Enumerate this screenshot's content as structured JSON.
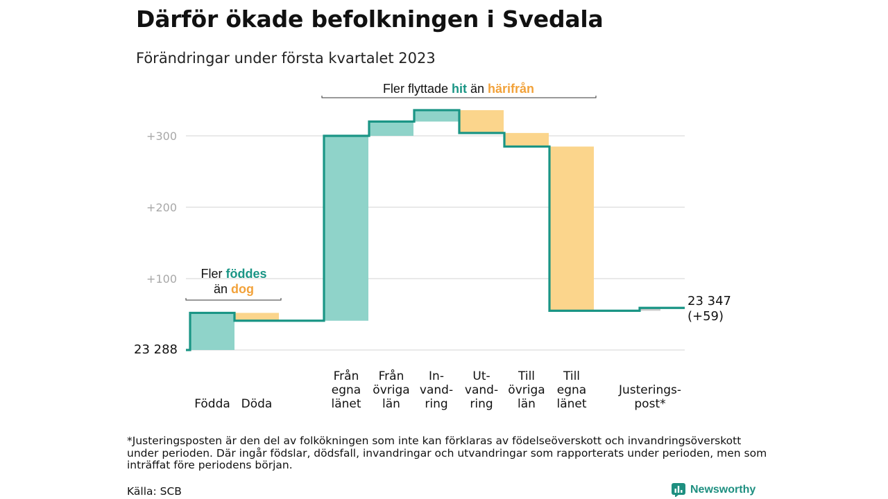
{
  "title": "Därför ökade befolkningen i Svedala",
  "subtitle": "Förändringar under första kvartalet 2023",
  "chart_data": {
    "type": "waterfall",
    "start_value": 23288,
    "start_label": "23 288",
    "end_label_lines": [
      "23 347",
      "(+59)"
    ],
    "y_ticks": [
      {
        "value": 100,
        "label": "+100"
      },
      {
        "value": 200,
        "label": "+200"
      },
      {
        "value": 300,
        "label": "+300"
      }
    ],
    "grid": true,
    "steps": [
      {
        "label_lines": [
          "Födda"
        ],
        "delta": 52,
        "group": 0
      },
      {
        "label_lines": [
          "Döda"
        ],
        "delta": -11,
        "group": 0
      },
      {
        "label_lines": [
          "Från",
          "egna",
          "länet"
        ],
        "delta": 259,
        "group": 1
      },
      {
        "label_lines": [
          "Från",
          "övriga",
          "län"
        ],
        "delta": 20,
        "group": 1
      },
      {
        "label_lines": [
          "In-",
          "vand-",
          "ring"
        ],
        "delta": 16,
        "group": 1
      },
      {
        "label_lines": [
          "Ut-",
          "vand-",
          "ring"
        ],
        "delta": -32,
        "group": 1
      },
      {
        "label_lines": [
          "Till",
          "övriga",
          "län"
        ],
        "delta": -19,
        "group": 1
      },
      {
        "label_lines": [
          "Till",
          "egna",
          "länet"
        ],
        "delta": -230,
        "group": 1
      },
      {
        "label_lines": [
          "Justerings-",
          "post*"
        ],
        "delta": 4,
        "group": 2
      }
    ],
    "colors": {
      "increase": "#8fd3c9",
      "decrease": "#fbd58c",
      "adjustment": "#c8c8c8",
      "line": "#1a9585",
      "accent_teal": "#1a9585",
      "accent_orange": "#f2a23a",
      "grid": "#dcdcdc",
      "tick_text": "#a8a8a8"
    },
    "annotations": [
      {
        "target": "births",
        "line1": [
          "Fler ",
          "föddes"
        ],
        "line2": [
          "än ",
          "dog"
        ]
      },
      {
        "target": "moves",
        "line1": [
          "Fler flyttade ",
          "hit",
          " än ",
          "härifrån"
        ]
      }
    ]
  },
  "footnote": "*Justeringsposten är den del av folkökningen som inte kan förklaras av födelseöverskott och invandringsöverskott under perioden. Där ingår födslar, dödsfall, invandringar och utvandringar som rapporterats under perioden, men som inträffat före periodens början.",
  "source": "Källa: SCB",
  "brand": {
    "name": "Newsworthy",
    "icon": "newsworthy-logo-icon"
  }
}
